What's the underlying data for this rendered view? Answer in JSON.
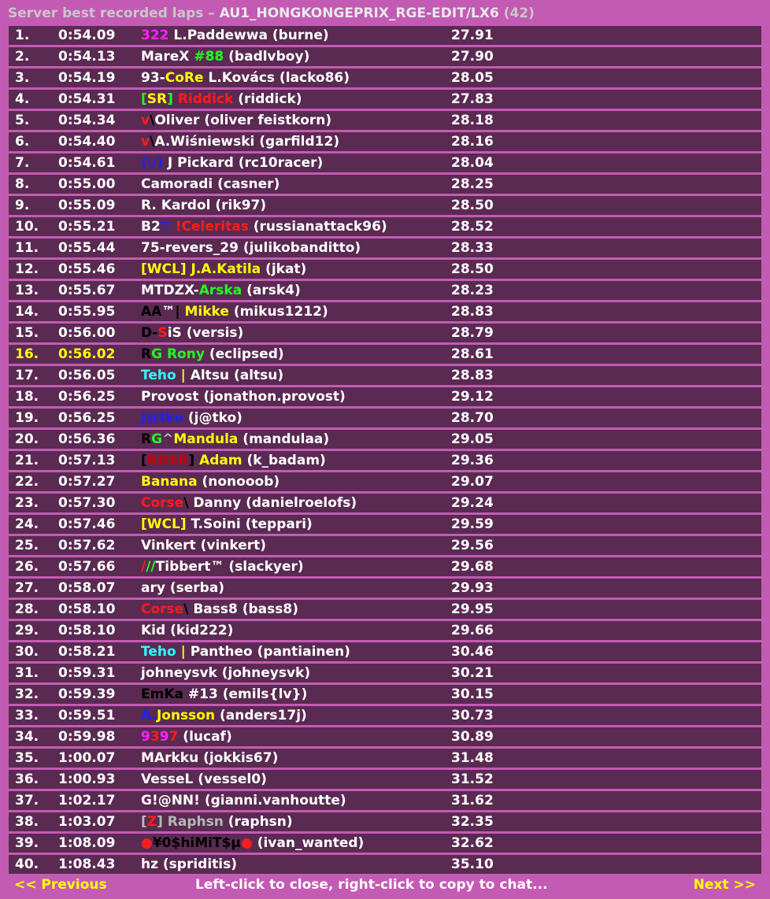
{
  "window": {
    "title_prefix": "Server best recorded laps – ",
    "track": "AU1_HONGKONGEPRIX_RGE-EDIT/LX6",
    "count": "(42)"
  },
  "colors": {
    "panel": "#c35bb4",
    "row": "#5a2a52",
    "highlight": "#ffff00"
  },
  "highlighted_position": "16.",
  "rows": [
    {
      "pos": "1.",
      "time": "0:54.09",
      "name": [
        {
          "t": "322",
          "c": "magenta"
        },
        {
          "t": " L.Paddewwa (burne)",
          "c": "white"
        }
      ],
      "split": "27.91"
    },
    {
      "pos": "2.",
      "time": "0:54.13",
      "name": [
        {
          "t": "MareX ",
          "c": "white"
        },
        {
          "t": "#88",
          "c": "green"
        },
        {
          "t": " (badlvboy)",
          "c": "white"
        }
      ],
      "split": "27.90"
    },
    {
      "pos": "3.",
      "time": "0:54.19",
      "name": [
        {
          "t": "93-",
          "c": "white"
        },
        {
          "t": "CoRe",
          "c": "yellow"
        },
        {
          "t": " L.Kovács (lacko86)",
          "c": "white"
        }
      ],
      "split": "28.05"
    },
    {
      "pos": "4.",
      "time": "0:54.31",
      "name": [
        {
          "t": "[",
          "c": "green"
        },
        {
          "t": "SR",
          "c": "yellow"
        },
        {
          "t": "] ",
          "c": "green"
        },
        {
          "t": "Riddick",
          "c": "red"
        },
        {
          "t": " (riddick)",
          "c": "white"
        }
      ],
      "split": "27.83"
    },
    {
      "pos": "5.",
      "time": "0:54.34",
      "name": [
        {
          "t": "v",
          "c": "red"
        },
        {
          "t": "\\",
          "c": "black"
        },
        {
          "t": "Oliver (oliver feistkorn)",
          "c": "white"
        }
      ],
      "split": "28.18"
    },
    {
      "pos": "6.",
      "time": "0:54.40",
      "name": [
        {
          "t": "v",
          "c": "red"
        },
        {
          "t": "\\",
          "c": "black"
        },
        {
          "t": "A.Wiśniewski (garfild12)",
          "c": "white"
        }
      ],
      "split": "28.16"
    },
    {
      "pos": "7.",
      "time": "0:54.61",
      "name": [
        {
          "t": "(\\/)",
          "c": "blue"
        },
        {
          "t": " J Pickard (rc10racer)",
          "c": "white"
        }
      ],
      "split": "28.04"
    },
    {
      "pos": "8.",
      "time": "0:55.00",
      "name": [
        {
          "t": "Camoradi (casner)",
          "c": "white"
        }
      ],
      "split": "28.25"
    },
    {
      "pos": "9.",
      "time": "0:55.09",
      "name": [
        {
          "t": "R. Kardol (rik97)",
          "c": "white"
        }
      ],
      "split": "28.50"
    },
    {
      "pos": "10.",
      "time": "0:55.21",
      "name": [
        {
          "t": "B2",
          "c": "white"
        },
        {
          "t": "▽",
          "c": "blue"
        },
        {
          "t": " !Celeritas",
          "c": "red"
        },
        {
          "t": " (russianattack96)",
          "c": "white"
        }
      ],
      "split": "28.52"
    },
    {
      "pos": "11.",
      "time": "0:55.44",
      "name": [
        {
          "t": "75-revers_29 (julikobanditto)",
          "c": "white"
        }
      ],
      "split": "28.33"
    },
    {
      "pos": "12.",
      "time": "0:55.46",
      "name": [
        {
          "t": "[WCL] J.A.Katila",
          "c": "yellow"
        },
        {
          "t": " (jkat)",
          "c": "white"
        }
      ],
      "split": "28.50"
    },
    {
      "pos": "13.",
      "time": "0:55.67",
      "name": [
        {
          "t": "MTDZX-",
          "c": "white"
        },
        {
          "t": "Arska",
          "c": "green"
        },
        {
          "t": " (arsk4)",
          "c": "white"
        }
      ],
      "split": "28.23"
    },
    {
      "pos": "14.",
      "time": "0:55.95",
      "name": [
        {
          "t": "AA",
          "c": "black"
        },
        {
          "t": "™",
          "c": "white"
        },
        {
          "t": "| ",
          "c": "black"
        },
        {
          "t": "Mikke",
          "c": "yellow"
        },
        {
          "t": " (mikus1212)",
          "c": "white"
        }
      ],
      "split": "28.83"
    },
    {
      "pos": "15.",
      "time": "0:56.00",
      "name": [
        {
          "t": "D-",
          "c": "black"
        },
        {
          "t": "S",
          "c": "red"
        },
        {
          "t": "iS (versis)",
          "c": "white"
        }
      ],
      "split": "28.79"
    },
    {
      "pos": "16.",
      "time": "0:56.02",
      "name": [
        {
          "t": "R",
          "c": "black"
        },
        {
          "t": "G ",
          "c": "green"
        },
        {
          "t": "Rony",
          "c": "green"
        },
        {
          "t": " (eclipsed)",
          "c": "white"
        }
      ],
      "split": "28.61"
    },
    {
      "pos": "17.",
      "time": "0:56.05",
      "name": [
        {
          "t": "Teho",
          "c": "cyan"
        },
        {
          "t": " | ",
          "c": "yellow"
        },
        {
          "t": "Altsu (altsu)",
          "c": "white"
        }
      ],
      "split": "28.83"
    },
    {
      "pos": "18.",
      "time": "0:56.25",
      "name": [
        {
          "t": "Provost (jonathon.provost)",
          "c": "white"
        }
      ],
      "split": "29.12"
    },
    {
      "pos": "19.",
      "time": "0:56.25",
      "name": [
        {
          "t": "J@tko",
          "c": "blue"
        },
        {
          "t": " (j@tko)",
          "c": "white"
        }
      ],
      "split": "28.70"
    },
    {
      "pos": "20.",
      "time": "0:56.36",
      "name": [
        {
          "t": "R",
          "c": "black"
        },
        {
          "t": "G",
          "c": "green"
        },
        {
          "t": "^",
          "c": "grey"
        },
        {
          "t": "Mandula",
          "c": "yellow"
        },
        {
          "t": " (mandulaa)",
          "c": "white"
        }
      ],
      "split": "29.05"
    },
    {
      "pos": "21.",
      "time": "0:57.13",
      "name": [
        {
          "t": "[",
          "c": "black"
        },
        {
          "t": "RDSR",
          "c": "darkred"
        },
        {
          "t": "] ",
          "c": "black"
        },
        {
          "t": "Adam",
          "c": "yellow"
        },
        {
          "t": " (k_badam)",
          "c": "white"
        }
      ],
      "split": "29.36"
    },
    {
      "pos": "22.",
      "time": "0:57.27",
      "name": [
        {
          "t": "Banana",
          "c": "yellow"
        },
        {
          "t": " (nonooob)",
          "c": "white"
        }
      ],
      "split": "29.07"
    },
    {
      "pos": "23.",
      "time": "0:57.30",
      "name": [
        {
          "t": "Corse",
          "c": "red"
        },
        {
          "t": "\\",
          "c": "black"
        },
        {
          "t": " Danny (danielroelofs)",
          "c": "white"
        }
      ],
      "split": "29.24"
    },
    {
      "pos": "24.",
      "time": "0:57.46",
      "name": [
        {
          "t": "[WCL]",
          "c": "yellow"
        },
        {
          "t": " T.Soini (teppari)",
          "c": "white"
        }
      ],
      "split": "29.59"
    },
    {
      "pos": "25.",
      "time": "0:57.62",
      "name": [
        {
          "t": "Vinkert (vinkert)",
          "c": "white"
        }
      ],
      "split": "29.56"
    },
    {
      "pos": "26.",
      "time": "0:57.66",
      "name": [
        {
          "t": "/",
          "c": "red"
        },
        {
          "t": "//",
          "c": "green"
        },
        {
          "t": "Tibbert™ (slackyer)",
          "c": "white"
        }
      ],
      "split": "29.68"
    },
    {
      "pos": "27.",
      "time": "0:58.07",
      "name": [
        {
          "t": "ary (serba)",
          "c": "white"
        }
      ],
      "split": "29.93"
    },
    {
      "pos": "28.",
      "time": "0:58.10",
      "name": [
        {
          "t": "Corse",
          "c": "red"
        },
        {
          "t": "\\",
          "c": "black"
        },
        {
          "t": " Bass8 (bass8)",
          "c": "white"
        }
      ],
      "split": "29.95"
    },
    {
      "pos": "29.",
      "time": "0:58.10",
      "name": [
        {
          "t": "Kid (kid222)",
          "c": "white"
        }
      ],
      "split": "29.66"
    },
    {
      "pos": "30.",
      "time": "0:58.21",
      "name": [
        {
          "t": "Teho",
          "c": "cyan"
        },
        {
          "t": " | ",
          "c": "yellow"
        },
        {
          "t": "Pantheo (pantiainen)",
          "c": "white"
        }
      ],
      "split": "30.46"
    },
    {
      "pos": "31.",
      "time": "0:59.31",
      "name": [
        {
          "t": "johneysvk (johneysvk)",
          "c": "white"
        }
      ],
      "split": "30.21"
    },
    {
      "pos": "32.",
      "time": "0:59.39",
      "name": [
        {
          "t": "EmKa",
          "c": "black"
        },
        {
          "t": " #13 (emils{lv})",
          "c": "white"
        }
      ],
      "split": "30.15"
    },
    {
      "pos": "33.",
      "time": "0:59.51",
      "name": [
        {
          "t": "A.",
          "c": "blue"
        },
        {
          "t": "Jonsson",
          "c": "yellow"
        },
        {
          "t": " (anders17j)",
          "c": "white"
        }
      ],
      "split": "30.73"
    },
    {
      "pos": "34.",
      "time": "0:59.98",
      "name": [
        {
          "t": "9",
          "c": "magenta"
        },
        {
          "t": "3",
          "c": "red"
        },
        {
          "t": "9",
          "c": "magenta"
        },
        {
          "t": "7",
          "c": "red"
        },
        {
          "t": " (lucaf)",
          "c": "white"
        }
      ],
      "split": "30.89"
    },
    {
      "pos": "35.",
      "time": "1:00.07",
      "name": [
        {
          "t": "MArkku (jokkis67)",
          "c": "white"
        }
      ],
      "split": "31.48"
    },
    {
      "pos": "36.",
      "time": "1:00.93",
      "name": [
        {
          "t": "VesseL (vessel0)",
          "c": "white"
        }
      ],
      "split": "31.52"
    },
    {
      "pos": "37.",
      "time": "1:02.17",
      "name": [
        {
          "t": "G!@NN! (gianni.vanhoutte)",
          "c": "white"
        }
      ],
      "split": "31.62"
    },
    {
      "pos": "38.",
      "time": "1:03.07",
      "name": [
        {
          "t": "[",
          "c": "grey"
        },
        {
          "t": "Z",
          "c": "red"
        },
        {
          "t": "] Raphsn",
          "c": "grey"
        },
        {
          "t": " (raphsn)",
          "c": "white"
        }
      ],
      "split": "32.35"
    },
    {
      "pos": "39.",
      "time": "1:08.09",
      "name": [
        {
          "t": "●",
          "c": "red"
        },
        {
          "t": "¥0$hiMiT$µ",
          "c": "black"
        },
        {
          "t": "●",
          "c": "red"
        },
        {
          "t": " (ivan_wanted)",
          "c": "white"
        }
      ],
      "split": "32.62"
    },
    {
      "pos": "40.",
      "time": "1:08.43",
      "name": [
        {
          "t": "hz (spriditis)",
          "c": "white"
        }
      ],
      "split": "35.10"
    }
  ],
  "footer": {
    "previous": "<< Previous",
    "hint": "Left-click to close, right-click to copy to chat...",
    "next": "Next >>"
  }
}
